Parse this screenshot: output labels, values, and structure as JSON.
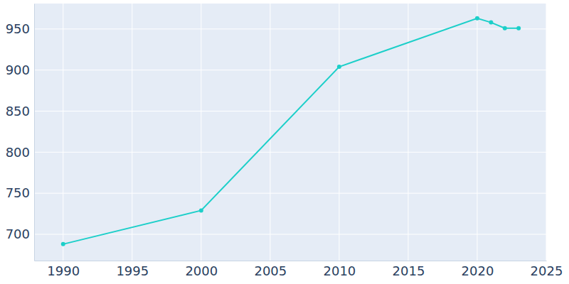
{
  "chart_data": {
    "type": "line",
    "x": [
      1990,
      2000,
      2010,
      2020,
      2021,
      2022,
      2023
    ],
    "values": [
      688,
      729,
      904,
      963,
      958,
      951,
      951
    ],
    "color": "#1ccfc9",
    "marker": "circle",
    "xlim": [
      1987.9,
      2025
    ],
    "xticks": [
      1990,
      1995,
      2000,
      2005,
      2010,
      2015,
      2020,
      2025
    ],
    "ylim": [
      668,
      981
    ],
    "yticks": [
      700,
      750,
      800,
      850,
      900,
      950
    ],
    "grid": true
  }
}
